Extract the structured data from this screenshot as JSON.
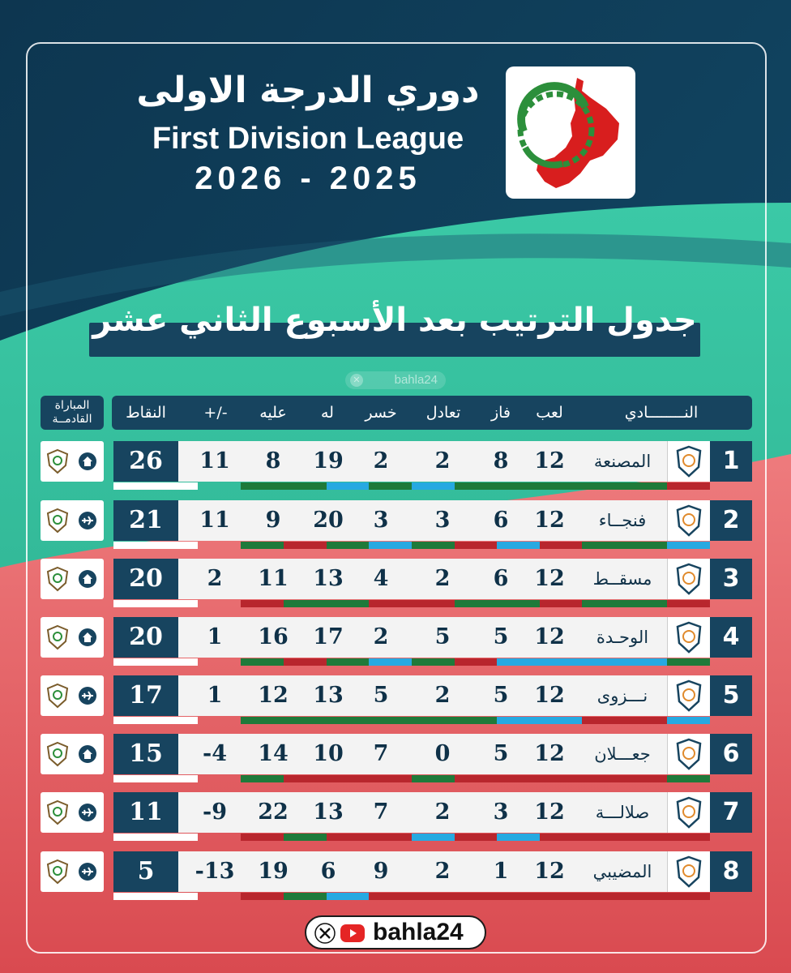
{
  "header": {
    "title_ar": "دوري الدرجة الاولى",
    "title_en": "First Division League",
    "season": "2026 - 2025"
  },
  "table_title": "جدول الترتيب بعد الأسبوع الثاني عشر",
  "watermark": "bahla24",
  "columns": {
    "team": "النــــــــادي",
    "played": "لعب",
    "won": "فاز",
    "drawn": "تعادل",
    "lost": "خسر",
    "goals_for": "له",
    "goals_against": "عليه",
    "goal_diff": "+/-",
    "points": "النقاط",
    "next_match": "المباراة القادمــة"
  },
  "rows": [
    {
      "rank": "1",
      "team": "المصنعة",
      "played": "12",
      "won": "8",
      "drawn": "2",
      "lost": "2",
      "gf": "19",
      "ga": "8",
      "gd": "11",
      "pts": "26",
      "next": "home",
      "strips": [
        "#b8262d",
        "#1f7a3a",
        "#1f7a3a",
        "#1f7a3a",
        "#1f7a3a",
        "#1f7a3a",
        "#27a9e1",
        "#1f7a3a",
        "#27a9e1",
        "#1f7a3a",
        "#1f7a3a",
        "#ffffff"
      ]
    },
    {
      "rank": "2",
      "team": "فنجــاء",
      "played": "12",
      "won": "6",
      "drawn": "3",
      "lost": "3",
      "gf": "20",
      "ga": "9",
      "gd": "11",
      "pts": "21",
      "next": "away",
      "strips": [
        "#27a9e1",
        "#1f7a3a",
        "#1f7a3a",
        "#b8262d",
        "#27a9e1",
        "#b8262d",
        "#1f7a3a",
        "#27a9e1",
        "#1f7a3a",
        "#b8262d",
        "#1f7a3a",
        "#ffffff"
      ]
    },
    {
      "rank": "3",
      "team": "مسقــط",
      "played": "12",
      "won": "6",
      "drawn": "2",
      "lost": "4",
      "gf": "13",
      "ga": "11",
      "gd": "2",
      "pts": "20",
      "next": "home",
      "strips": [
        "#b8262d",
        "#1f7a3a",
        "#1f7a3a",
        "#b8262d",
        "#1f7a3a",
        "#1f7a3a",
        "#b8262d",
        "#b8262d",
        "#1f7a3a",
        "#1f7a3a",
        "#b8262d",
        "#ffffff"
      ]
    },
    {
      "rank": "4",
      "team": "الوحـدة",
      "played": "12",
      "won": "5",
      "drawn": "5",
      "lost": "2",
      "gf": "17",
      "ga": "16",
      "gd": "1",
      "pts": "20",
      "next": "home",
      "strips": [
        "#1f7a3a",
        "#27a9e1",
        "#27a9e1",
        "#27a9e1",
        "#27a9e1",
        "#b8262d",
        "#1f7a3a",
        "#27a9e1",
        "#1f7a3a",
        "#b8262d",
        "#1f7a3a",
        "#ffffff"
      ]
    },
    {
      "rank": "5",
      "team": "نـــزوى",
      "played": "12",
      "won": "5",
      "drawn": "2",
      "lost": "5",
      "gf": "13",
      "ga": "12",
      "gd": "1",
      "pts": "17",
      "next": "away",
      "strips": [
        "#27a9e1",
        "#b8262d",
        "#b8262d",
        "#27a9e1",
        "#27a9e1",
        "#1f7a3a",
        "#1f7a3a",
        "#1f7a3a",
        "#1f7a3a",
        "#1f7a3a",
        "#1f7a3a",
        "#ffffff"
      ]
    },
    {
      "rank": "6",
      "team": "جعـــلان",
      "played": "12",
      "won": "5",
      "drawn": "0",
      "lost": "7",
      "gf": "10",
      "ga": "14",
      "gd": "-4",
      "pts": "15",
      "next": "home",
      "strips": [
        "#1f7a3a",
        "#b8262d",
        "#b8262d",
        "#b8262d",
        "#b8262d",
        "#b8262d",
        "#1f7a3a",
        "#b8262d",
        "#b8262d",
        "#b8262d",
        "#1f7a3a",
        "#ffffff"
      ]
    },
    {
      "rank": "7",
      "team": "صلالـــة",
      "played": "12",
      "won": "3",
      "drawn": "2",
      "lost": "7",
      "gf": "13",
      "ga": "22",
      "gd": "-9",
      "pts": "11",
      "next": "away",
      "strips": [
        "#b8262d",
        "#b8262d",
        "#b8262d",
        "#b8262d",
        "#27a9e1",
        "#b8262d",
        "#27a9e1",
        "#b8262d",
        "#b8262d",
        "#1f7a3a",
        "#b8262d",
        "#ffffff"
      ]
    },
    {
      "rank": "8",
      "team": "المضيبي",
      "played": "12",
      "won": "1",
      "drawn": "2",
      "lost": "9",
      "gf": "6",
      "ga": "19",
      "gd": "-13",
      "pts": "5",
      "next": "away",
      "strips": [
        "#b8262d",
        "#b8262d",
        "#b8262d",
        "#b8262d",
        "#b8262d",
        "#b8262d",
        "#b8262d",
        "#b8262d",
        "#27a9e1",
        "#1f7a3a",
        "#b8262d",
        "#ffffff"
      ]
    }
  ],
  "footer": {
    "brand": "bahla24"
  },
  "colors": {
    "navy": "#17445f",
    "teal": "#2fbf9b",
    "coral": "#e35a5e",
    "win": "#1f7a3a",
    "draw": "#27a9e1",
    "loss": "#b8262d"
  }
}
